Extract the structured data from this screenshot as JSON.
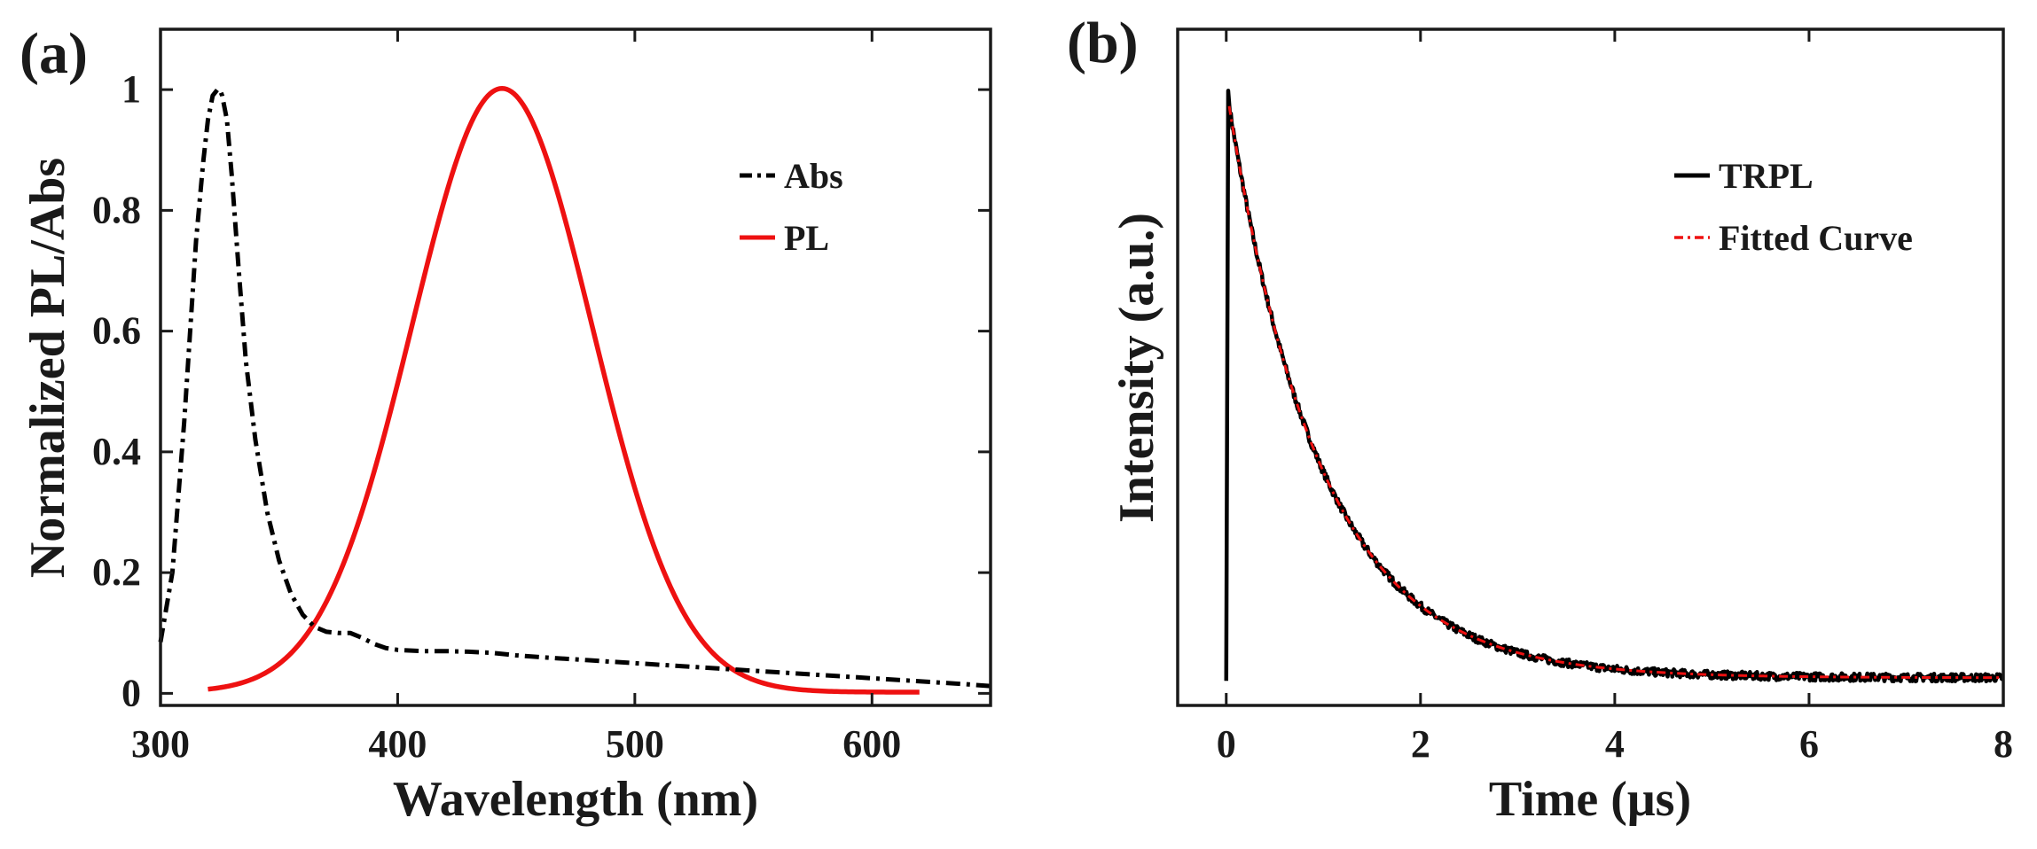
{
  "chart_data": [
    {
      "panel_label": "(a)",
      "type": "line",
      "title": "",
      "xlabel": "Wavelength (nm)",
      "ylabel": "Normalized PL/Abs",
      "xlim": [
        300,
        650
      ],
      "ylim": [
        -0.02,
        1.1
      ],
      "xticks": [
        300,
        400,
        500,
        600
      ],
      "yticks": [
        0,
        0.2,
        0.4,
        0.6,
        0.8,
        1
      ],
      "xtick_labels": [
        "300",
        "400",
        "500",
        "600"
      ],
      "ytick_labels": [
        "0",
        "0.2",
        "0.4",
        "0.6",
        "0.8",
        "1"
      ],
      "legend_position": "top-right",
      "grid": false,
      "series": [
        {
          "name": "Abs",
          "color": "#000000",
          "style": "dash-dot",
          "x": [
            300,
            305,
            310,
            315,
            318,
            320,
            322,
            324,
            325,
            326,
            328,
            330,
            333,
            336,
            340,
            345,
            350,
            355,
            360,
            365,
            370,
            375,
            380,
            385,
            390,
            395,
            400,
            410,
            420,
            430,
            440,
            450,
            460,
            480,
            500,
            520,
            540,
            560,
            580,
            600,
            620,
            640,
            650
          ],
          "y": [
            0.085,
            0.2,
            0.45,
            0.75,
            0.88,
            0.95,
            0.99,
            1.0,
            1.0,
            0.99,
            0.95,
            0.86,
            0.7,
            0.55,
            0.42,
            0.3,
            0.22,
            0.165,
            0.13,
            0.11,
            0.102,
            0.1,
            0.1,
            0.092,
            0.082,
            0.075,
            0.072,
            0.07,
            0.07,
            0.069,
            0.067,
            0.063,
            0.06,
            0.055,
            0.05,
            0.045,
            0.04,
            0.035,
            0.03,
            0.025,
            0.02,
            0.015,
            0.012
          ]
        },
        {
          "name": "PL",
          "color": "#ee1111",
          "style": "solid",
          "gaussian": {
            "center": 444,
            "sigma": 38,
            "amplitude": 1.0,
            "baseline": 0.002
          },
          "x_range": [
            320,
            620
          ]
        }
      ]
    },
    {
      "panel_label": "(b)",
      "type": "line",
      "title": "",
      "xlabel": "Time (μs)",
      "ylabel": "Intensity (a.u.)",
      "xlim": [
        -0.5,
        8
      ],
      "ylim": [
        0,
        1.1
      ],
      "xticks": [
        0,
        2,
        4,
        6,
        8
      ],
      "yticks": [],
      "xtick_labels": [
        "0",
        "2",
        "4",
        "6",
        "8"
      ],
      "legend_position": "top-right",
      "grid": false,
      "series": [
        {
          "name": "TRPL",
          "color": "#000000",
          "style": "solid",
          "peak": {
            "t": 0.02,
            "start_value": 0.04,
            "peak_value": 1.0
          },
          "decay": {
            "amplitude": 0.93,
            "tau": 0.95,
            "offset": 0.045
          },
          "noise": 0.008,
          "t_range": [
            0,
            8
          ]
        },
        {
          "name": "Fitted Curve",
          "color": "#ee1111",
          "style": "dash-dot",
          "decay": {
            "amplitude": 0.93,
            "tau": 0.95,
            "offset": 0.045
          },
          "t_range": [
            0.03,
            8
          ]
        }
      ]
    }
  ]
}
